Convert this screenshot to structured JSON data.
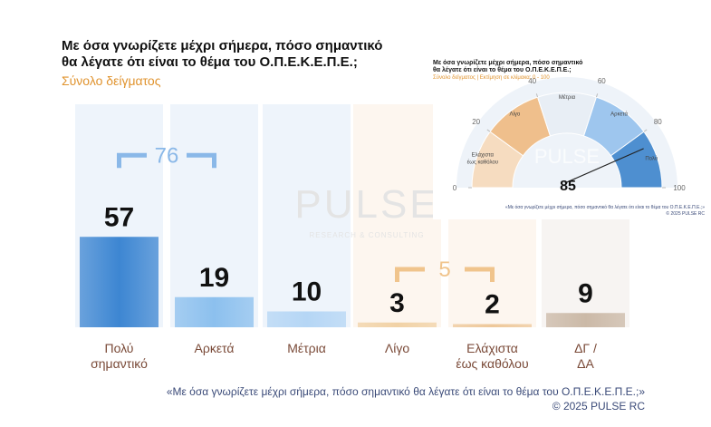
{
  "chart_data": [
    {
      "type": "bar",
      "title": "Με όσα γνωρίζετε μέχρι σήμερα, πόσο σημαντικό\nθα λέγατε ότι είναι το θέμα του  Ο.Π.Ε.Κ.Ε.Π.Ε.;",
      "subtitle": "Σύνολο δείγματος",
      "categories": [
        "Πολύ\nσημαντικό",
        "Αρκετά",
        "Μέτρια",
        "Λίγο",
        "Ελάχιστα\nέως καθόλου",
        "ΔΓ /\nΔΑ"
      ],
      "values": [
        57,
        19,
        10,
        3,
        2,
        9
      ],
      "colors": [
        "#3d86d2",
        "#8cc0ee",
        "#b5d6f5",
        "#f1d2a6",
        "#eec89a",
        "#cbb9a7"
      ],
      "brackets": [
        {
          "value": 76,
          "from": 0,
          "to": 1
        },
        {
          "value": 5,
          "from": 3,
          "to": 4
        }
      ],
      "watermark": "PULSE",
      "watermark_sub": "RESEARCH & CONSULTING",
      "footer": "«Με όσα γνωρίζετε μέχρι σήμερα, πόσο σημαντικό θα λέγατε ότι είναι το θέμα του Ο.Π.Ε.Κ.Ε.Π.Ε.;»",
      "copyright": "©  2025  PULSE RC"
    },
    {
      "type": "gauge",
      "title": "Με όσα γνωρίζετε μέχρι σήμερα, πόσο σημαντικό\nθα λέγατε ότι είναι το θέμα του  Ο.Π.Ε.Κ.Ε.Π.Ε.;",
      "subtitle": "Σύνολο δείγματος  |  Εκτίμηση σε κλίμακα: 0 - 100",
      "value": 85,
      "xlim": [
        0,
        100
      ],
      "xticks": [
        0,
        20,
        40,
        60,
        80,
        100
      ],
      "bands": [
        "Ελάχιστα\nέως καθόλου",
        "Λίγο",
        "Μέτρια",
        "Αρκετά",
        "Πολύ"
      ],
      "band_colors": [
        "#f6dcc0",
        "#efbf8c",
        "#e8eef5",
        "#9ec6ee",
        "#4e8fd0"
      ],
      "watermark": "PULSE",
      "footer": "«Με όσα γνωρίζετε μέχρι σήμερα, πόσο σημαντικό θα λέγατε ότι είναι το θέμα του Ο.Π.Ε.Κ.Ε.Π.Ε.;»",
      "copyright": "© 2025 PULSE RC"
    }
  ]
}
